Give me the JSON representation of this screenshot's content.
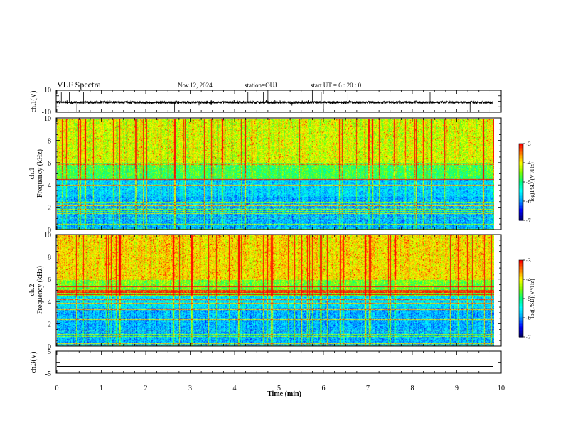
{
  "header": {
    "title": "VLF Spectra",
    "date": "Nov.12, 2024",
    "station": "station=OUJ",
    "start": "start  UT =   6 : 20 : 0"
  },
  "chart_data": [
    {
      "type": "line",
      "panel": "ch1-waveform",
      "ylabel": "ch.1(V)",
      "ylim": [
        -10,
        10
      ],
      "yticks": [
        "10",
        "-10"
      ],
      "x_range_min": [
        0,
        9.8
      ],
      "baseline": -1.0,
      "spikes_x_min": [
        0.1,
        0.28,
        0.45,
        0.6,
        2.65,
        4.3,
        4.65,
        4.75,
        5.75,
        5.95,
        6.0,
        6.55,
        8.4,
        9.3,
        9.75
      ]
    },
    {
      "type": "heatmap",
      "panel": "ch1-spectrogram",
      "ylabel": "ch.1\nFrequency  (kHz)",
      "ylabel_line1": "ch.1",
      "ylabel_line2": "Frequency  (kHz)",
      "ylim": [
        0,
        10
      ],
      "yticks": [
        "0",
        "2",
        "4",
        "6",
        "8",
        "10"
      ],
      "x_range_min": [
        0,
        9.8
      ],
      "colorbar": {
        "label": "log(PSD)(V²/Hz)",
        "range": [
          -7,
          -3
        ],
        "ticks": [
          "-3",
          "-4",
          "-5",
          "-6",
          "-7"
        ]
      }
    },
    {
      "type": "heatmap",
      "panel": "ch2-spectrogram",
      "ylabel": "ch.2\nFrequency  (kHz)",
      "ylabel_line1": "ch.2",
      "ylabel_line2": "Frequency  (kHz)",
      "ylim": [
        0,
        10
      ],
      "yticks": [
        "0",
        "2",
        "4",
        "6",
        "8",
        "10"
      ],
      "x_range_min": [
        0,
        9.8
      ],
      "colorbar": {
        "label": "log(PSD)(V²/Hz)",
        "range": [
          -7,
          -3
        ],
        "ticks": [
          "-3",
          "-4",
          "-5",
          "-6",
          "-7"
        ]
      }
    },
    {
      "type": "line",
      "panel": "ch3-waveform",
      "ylabel": "ch.3(V)",
      "ylim": [
        -5,
        5
      ],
      "yticks": [
        "5",
        "0",
        "-5"
      ],
      "x_range_min": [
        0,
        9.8
      ],
      "constant_value": -2
    }
  ],
  "xaxis": {
    "label": "Time  (min)",
    "range": [
      0,
      10
    ],
    "ticks": [
      "0",
      "1",
      "2",
      "3",
      "4",
      "5",
      "6",
      "7",
      "8",
      "9",
      "10"
    ]
  },
  "colormap": [
    "#000070",
    "#0000ff",
    "#00a0ff",
    "#00ffff",
    "#00ff80",
    "#80ff00",
    "#ffff00",
    "#ff8000",
    "#ff0000",
    "#ffffff"
  ]
}
